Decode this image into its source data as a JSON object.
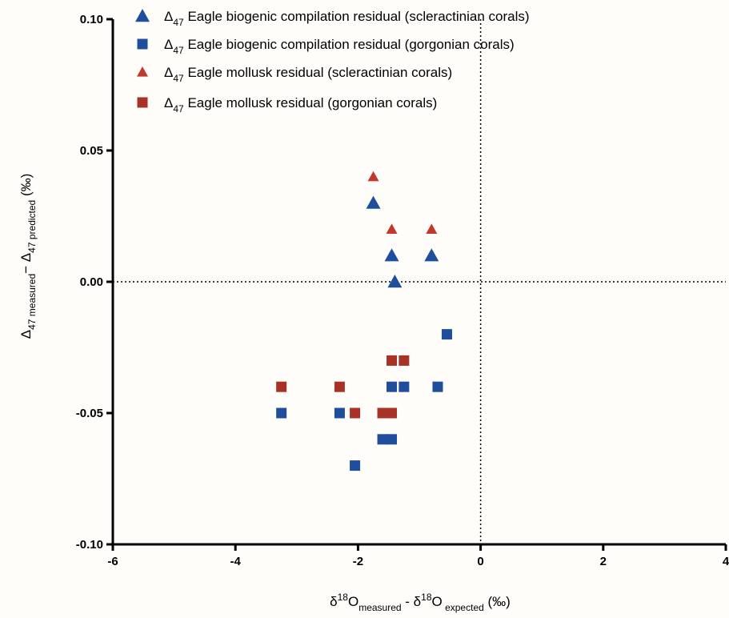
{
  "chart_data": {
    "type": "scatter",
    "xlim": [
      -6,
      4
    ],
    "ylim": [
      -0.1,
      0.1
    ],
    "x_ticks": [
      -6,
      -4,
      -2,
      0,
      2,
      4
    ],
    "x_tick_labels": [
      "-6",
      "-4",
      "-2",
      "0",
      "2",
      "4"
    ],
    "y_ticks": [
      -0.1,
      -0.05,
      0.0,
      0.05,
      0.1
    ],
    "y_tick_labels": [
      "-0.10",
      "-0.05",
      "0.00",
      "0.05",
      "0.10"
    ],
    "xlabel": {
      "base1": "δ",
      "sup1": "18",
      "o1": "O",
      "sub1": "measured",
      "mid": " - δ",
      "sup2": "18",
      "o2": "O",
      "sub2": " expected",
      "unit": " (‰)"
    },
    "ylabel": {
      "delta1": "Δ",
      "sub1": "47",
      "txt1": " measured",
      "dash": "− ",
      "delta2": "Δ",
      "sub2": "47",
      "txt2": " predicted",
      "unit": " (‰)"
    },
    "legend_position": "top",
    "grid": false,
    "zero_lines": "dotted",
    "series": [
      {
        "name_prefix": "Δ",
        "name_sub": "47",
        "name": " Eagle biogenic compilation residual (scleractinian corals)",
        "marker": "triangle",
        "color": "#1f4e9c",
        "points": [
          [
            -1.75,
            0.03
          ],
          [
            -1.45,
            0.01
          ],
          [
            -0.8,
            0.01
          ],
          [
            -1.4,
            0.0
          ]
        ]
      },
      {
        "name_prefix": "Δ",
        "name_sub": "47",
        "name": " Eagle biogenic compilation residual (gorgonian corals)",
        "marker": "square",
        "color": "#1f4e9c",
        "points": [
          [
            -0.55,
            -0.02
          ],
          [
            -1.45,
            -0.04
          ],
          [
            -1.25,
            -0.04
          ],
          [
            -0.7,
            -0.04
          ],
          [
            -3.25,
            -0.05
          ],
          [
            -2.3,
            -0.05
          ],
          [
            -1.6,
            -0.06
          ],
          [
            -1.45,
            -0.06
          ],
          [
            -2.05,
            -0.07
          ]
        ]
      },
      {
        "name_prefix": "Δ",
        "name_sub": "47",
        "name": " Eagle mollusk residual (scleractinian corals)",
        "marker": "triangle-small",
        "color": "#c0392b",
        "points": [
          [
            -1.75,
            0.04
          ],
          [
            -1.45,
            0.02
          ],
          [
            -0.8,
            0.02
          ]
        ]
      },
      {
        "name_prefix": "Δ",
        "name_sub": "47",
        "name": " Eagle mollusk residual (gorgonian corals)",
        "marker": "square",
        "color": "#a93226",
        "points": [
          [
            -1.45,
            -0.03
          ],
          [
            -1.25,
            -0.03
          ],
          [
            -3.25,
            -0.04
          ],
          [
            -2.3,
            -0.04
          ],
          [
            -2.05,
            -0.05
          ],
          [
            -1.6,
            -0.05
          ],
          [
            -1.45,
            -0.05
          ]
        ]
      }
    ]
  }
}
